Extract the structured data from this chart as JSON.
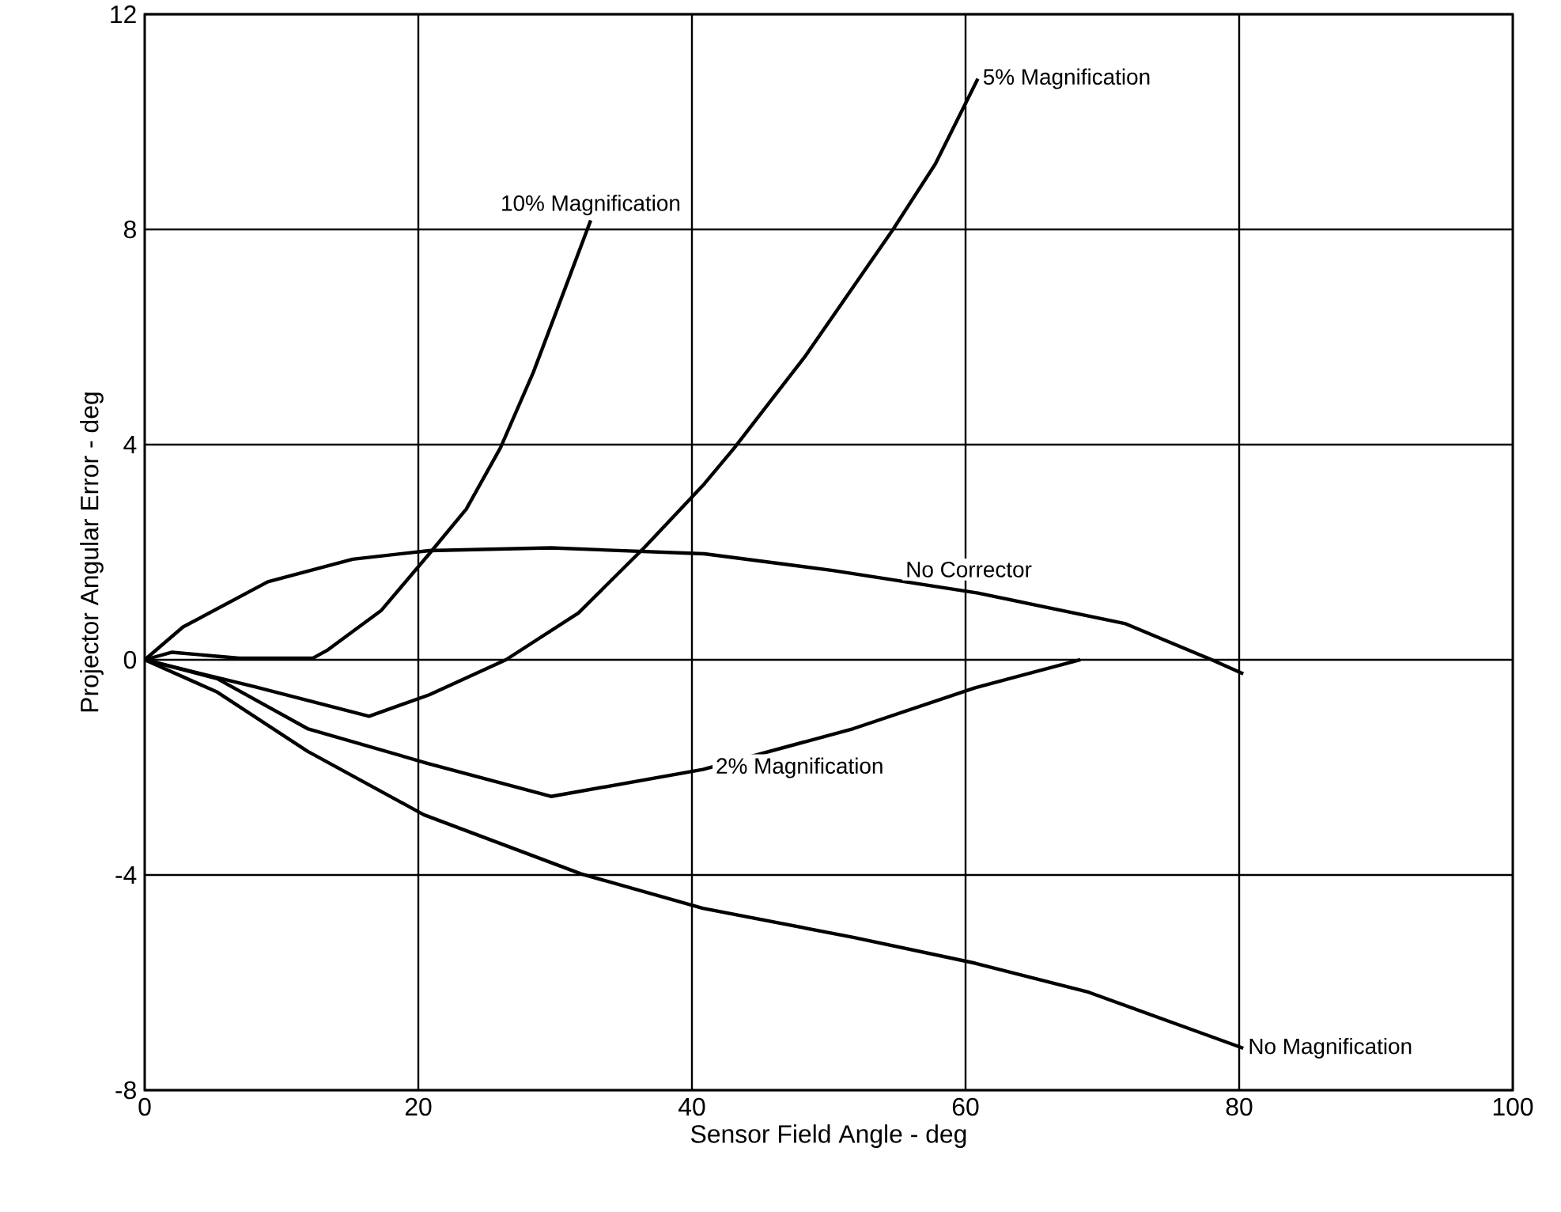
{
  "chart_data": {
    "type": "line",
    "xlabel": "Sensor Field Angle - deg",
    "ylabel": "Projector Angular Error - deg",
    "xlim": [
      0,
      100
    ],
    "ylim": [
      -8,
      12
    ],
    "xticks": [
      0,
      20,
      40,
      60,
      80,
      100
    ],
    "yticks": [
      -8,
      -4,
      0,
      4,
      8,
      12
    ],
    "grid": true,
    "legend": false,
    "marker": "none",
    "line_style": "solid",
    "series": [
      {
        "name": "10% Magnification",
        "color": "#000000",
        "x": [
          0,
          2,
          6.9,
          12.3,
          13.3,
          17.3,
          20.8,
          23.5,
          26,
          28.4,
          30.9,
          32.6
        ],
        "values": [
          0,
          0.14,
          0.03,
          0.03,
          0.17,
          0.92,
          1.97,
          2.8,
          3.94,
          5.34,
          7.02,
          8.17
        ]
      },
      {
        "name": "5% Magnification",
        "color": "#000000",
        "x": [
          0,
          8,
          16.4,
          20.8,
          26.4,
          31.7,
          36.5,
          40.9,
          43.1,
          48.3,
          54.7,
          57.8,
          60.9
        ],
        "values": [
          0,
          -0.5,
          -1.05,
          -0.65,
          0,
          0.87,
          2.08,
          3.27,
          3.94,
          5.65,
          8.0,
          9.22,
          10.8
        ]
      },
      {
        "name": "No Corrector",
        "color": "#000000",
        "x": [
          0,
          2.8,
          9,
          15.2,
          20.8,
          29.7,
          40.9,
          50.3,
          60.9,
          71.7,
          78,
          80.3
        ],
        "values": [
          0,
          0.61,
          1.45,
          1.87,
          2.03,
          2.08,
          1.97,
          1.66,
          1.24,
          0.67,
          0,
          -0.26
        ]
      },
      {
        "name": "2% Magnification",
        "color": "#000000",
        "x": [
          0,
          5.3,
          11.9,
          20.6,
          29.7,
          40.8,
          51.8,
          60.7,
          68.4
        ],
        "values": [
          0,
          -0.35,
          -1.28,
          -1.92,
          -2.54,
          -2.04,
          -1.28,
          -0.52,
          0
        ]
      },
      {
        "name": "No Magnification",
        "color": "#000000",
        "x": [
          0,
          5.3,
          11.9,
          20.4,
          31.9,
          40.8,
          51.8,
          60.7,
          69,
          80.3
        ],
        "values": [
          0,
          -0.6,
          -1.7,
          -2.88,
          -3.98,
          -4.62,
          -5.16,
          -5.64,
          -6.18,
          -7.22
        ]
      }
    ]
  }
}
